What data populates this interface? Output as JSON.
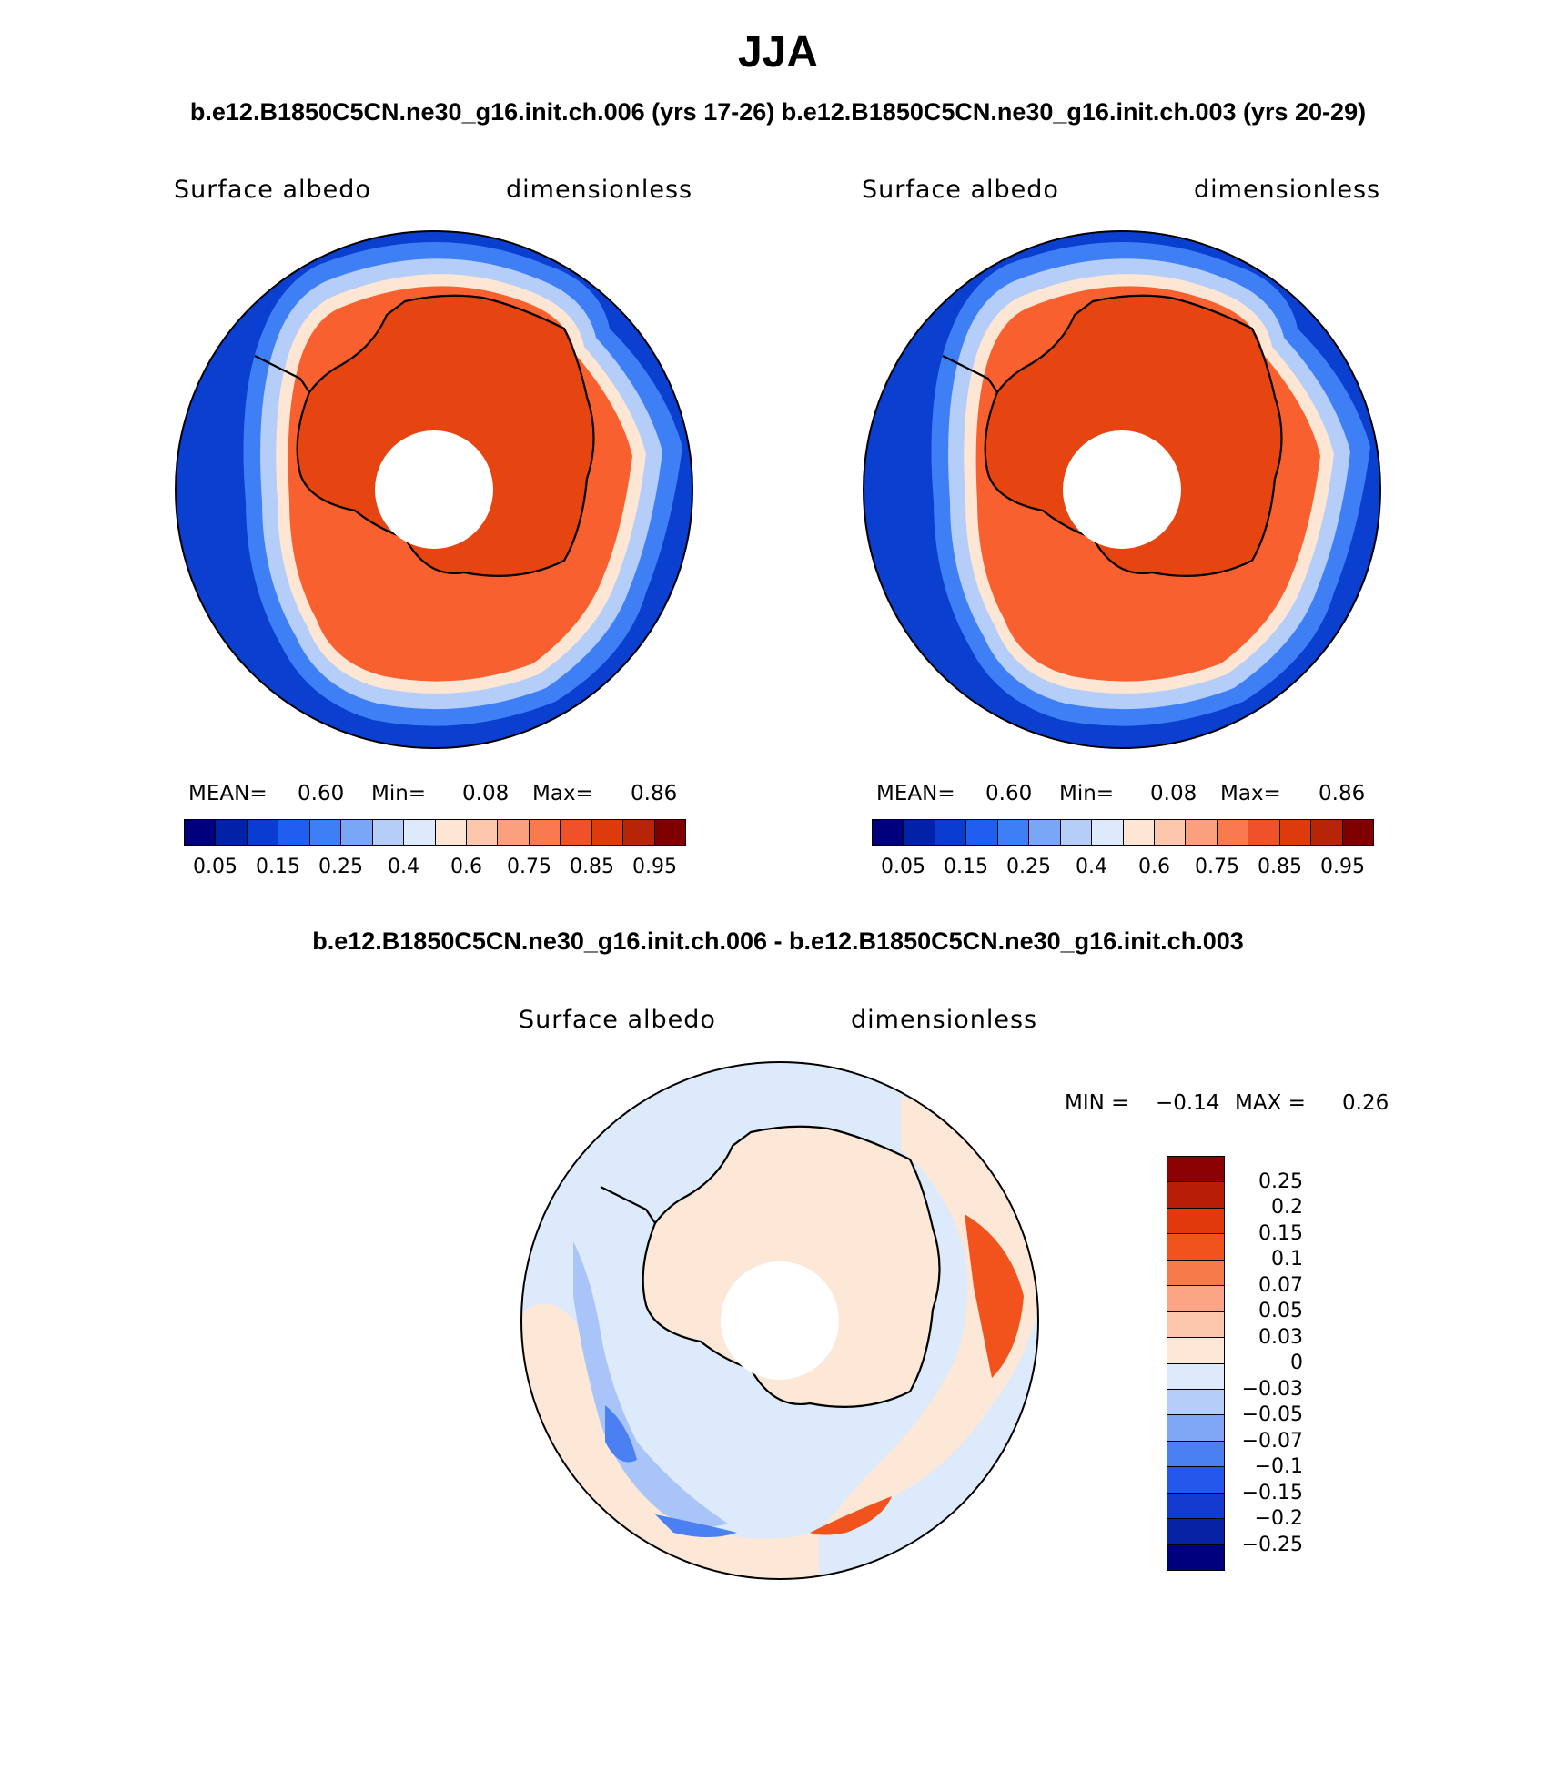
{
  "title": "JJA",
  "subtitle": "b.e12.B1850C5CN.ne30_g16.init.ch.006 (yrs 17-26) b.e12.B1850C5CN.ne30_g16.init.ch.003 (yrs 20-29)",
  "diff_title": "b.e12.B1850C5CN.ne30_g16.init.ch.006 - b.e12.B1850C5CN.ne30_g16.init.ch.003",
  "panels": [
    {
      "variable": "Surface albedo",
      "units": "dimensionless",
      "mean_label": "MEAN=",
      "mean": "0.60",
      "min_label": "Min=",
      "min": "0.08",
      "max_label": "Max=",
      "max": "0.86"
    },
    {
      "variable": "Surface albedo",
      "units": "dimensionless",
      "mean_label": "MEAN=",
      "mean": "0.60",
      "min_label": "Min=",
      "min": "0.08",
      "max_label": "Max=",
      "max": "0.86"
    }
  ],
  "diff_panel": {
    "variable": "Surface albedo",
    "units": "dimensionless",
    "min_label": "MIN =",
    "min": "−0.14",
    "max_label": "MAX =",
    "max": "0.26"
  },
  "colorbar": {
    "colors": [
      "#00007f",
      "#0022a8",
      "#0a3cd2",
      "#1f5ef0",
      "#3f7ff5",
      "#7aa6f7",
      "#b4cdf9",
      "#dceafc",
      "#fde6d4",
      "#fcc7ac",
      "#fba07d",
      "#f97a4e",
      "#f0502a",
      "#dd3a0e",
      "#b82407",
      "#7f0000"
    ],
    "labels": [
      "0.05",
      "0.15",
      "0.25",
      "0.4",
      "0.6",
      "0.75",
      "0.85",
      "0.95"
    ]
  },
  "diff_colorbar": {
    "colors": [
      "#8b0000",
      "#b81d06",
      "#e0390b",
      "#f2531c",
      "#f77a4b",
      "#fba585",
      "#fcc7ac",
      "#fde7d6",
      "#dceafb",
      "#b5cdf9",
      "#7fa7f5",
      "#4a80f1",
      "#2458ec",
      "#123bcf",
      "#0822a6",
      "#00007f"
    ],
    "labels": [
      "0.25",
      "0.2",
      "0.15",
      "0.1",
      "0.07",
      "0.05",
      "0.03",
      "0",
      "−0.03",
      "−0.05",
      "−0.07",
      "−0.1",
      "−0.15",
      "−0.2",
      "−0.25"
    ]
  },
  "map_colors": {
    "ocean_deep": "#0b3fcf",
    "ocean_mid": "#3f7ff5",
    "transition": "#b4cdf9",
    "edge": "#fde6d4",
    "ice": "#f9602f",
    "ice_dark": "#e8430f",
    "land": "#e64410",
    "diff_base": "#dceafc",
    "diff_pos": "#fde7d6",
    "diff_neg1": "#a9c4f8",
    "diff_neg2": "#4a80f1",
    "diff_pos2": "#f2531c"
  }
}
